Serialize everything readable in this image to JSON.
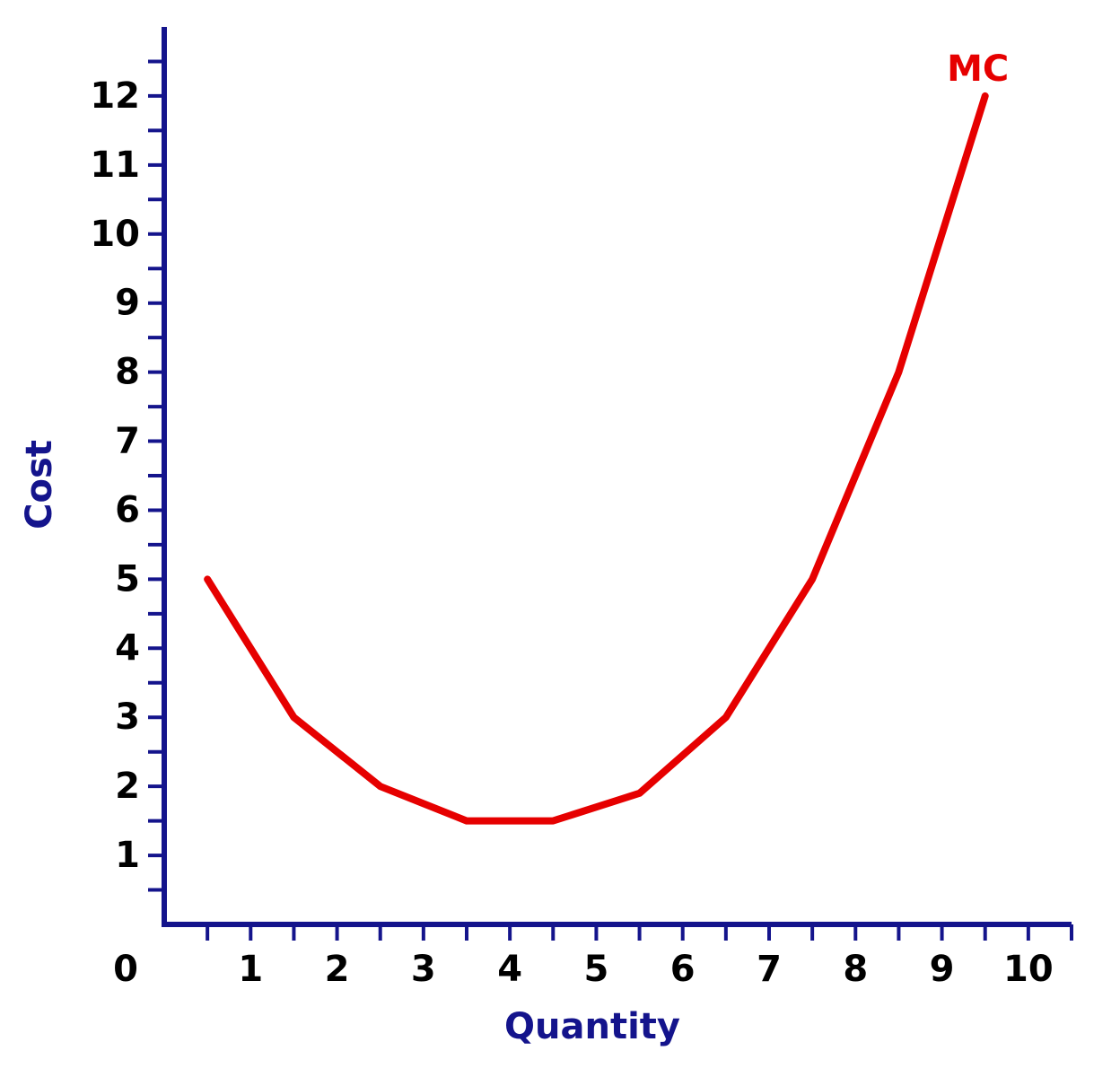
{
  "chart_data": {
    "type": "line",
    "x_label": "Quantity",
    "y_label": "Cost",
    "series": [
      {
        "name": "MC",
        "color": "#e60000",
        "x": [
          0.5,
          1.5,
          2.5,
          3.5,
          4.5,
          5.5,
          6.5,
          7.5,
          8.5,
          9.5
        ],
        "values": [
          5,
          3,
          2,
          1.5,
          1.5,
          1.9,
          3,
          5,
          8,
          12
        ]
      }
    ],
    "xlim": [
      0,
      10.5
    ],
    "ylim": [
      0,
      13
    ],
    "xticks": [
      0,
      1,
      2,
      3,
      4,
      5,
      6,
      7,
      8,
      9,
      10
    ],
    "yticks": [
      1,
      2,
      3,
      4,
      5,
      6,
      7,
      8,
      9,
      10,
      11,
      12
    ],
    "xminorticks": [
      0.5,
      1.5,
      2.5,
      3.5,
      4.5,
      5.5,
      6.5,
      7.5,
      8.5,
      9.5,
      10.5
    ],
    "yminorticks": [
      0.5,
      1.5,
      2.5,
      3.5,
      4.5,
      5.5,
      6.5,
      7.5,
      8.5,
      9.5,
      10.5,
      11.5,
      12.5
    ],
    "axis_color": "#14148c"
  }
}
